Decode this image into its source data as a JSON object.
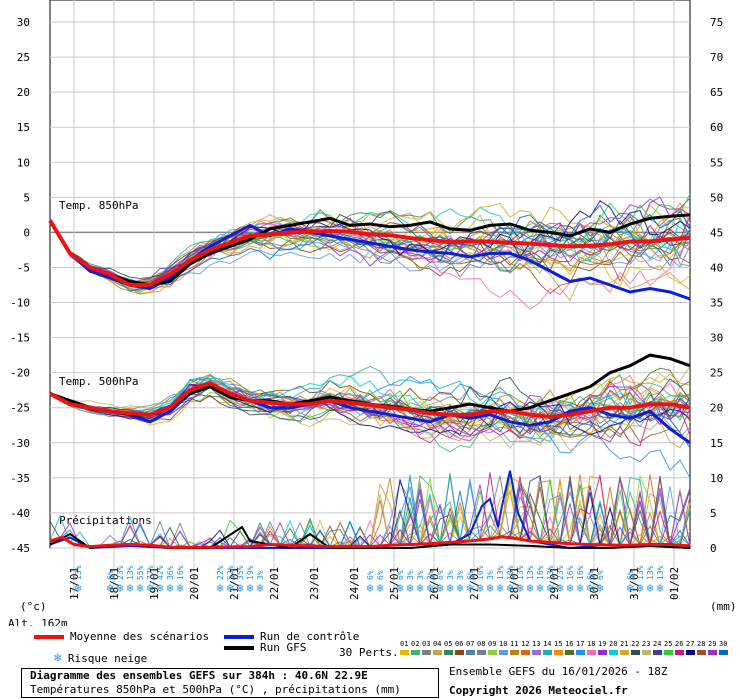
{
  "chart_data": {
    "type": "line",
    "left_axis": {
      "unit": "(°c)",
      "min": -45,
      "max": 30,
      "ticks": [
        30,
        25,
        20,
        15,
        10,
        5,
        0,
        -5,
        -10,
        -15,
        -20,
        -25,
        -30,
        -35,
        -40,
        -45
      ]
    },
    "right_axis": {
      "unit": "(mm)",
      "min": 0,
      "max": 75,
      "ticks": [
        75,
        70,
        65,
        60,
        55,
        50,
        45,
        40,
        35,
        30,
        25,
        20,
        15,
        10,
        5,
        0
      ]
    },
    "x_dates": [
      "17/01",
      "18/01",
      "19/01",
      "20/01",
      "21/01",
      "22/01",
      "23/01",
      "24/01",
      "25/01",
      "26/01",
      "27/01",
      "28/01",
      "29/01",
      "30/01",
      "31/01",
      "01/02"
    ],
    "x_range_days": [
      0,
      16
    ],
    "altitude": "Alt. 162m",
    "panel_labels": {
      "t850": "Temp. 850hPa",
      "t500": "Temp. 500hPa",
      "precip": "Précipitations"
    },
    "mean_t850": [
      [
        0,
        1.7
      ],
      [
        0.5,
        -3
      ],
      [
        1,
        -5
      ],
      [
        1.5,
        -6
      ],
      [
        2,
        -7.5
      ],
      [
        2.5,
        -7.5
      ],
      [
        3,
        -6
      ],
      [
        3.5,
        -4
      ],
      [
        4,
        -2.5
      ],
      [
        4.5,
        -1.5
      ],
      [
        5,
        -0.5
      ],
      [
        5.5,
        -0.3
      ],
      [
        6,
        0
      ],
      [
        6.5,
        0.1
      ],
      [
        7,
        0.2
      ],
      [
        7.5,
        0.1
      ],
      [
        8,
        -0.3
      ],
      [
        8.5,
        -0.4
      ],
      [
        9,
        -0.8
      ],
      [
        9.5,
        -1.1
      ],
      [
        10,
        -1.4
      ],
      [
        10.5,
        -1.3
      ],
      [
        11,
        -1.3
      ],
      [
        11.5,
        -1.5
      ],
      [
        12,
        -1.6
      ],
      [
        12.5,
        -1.8
      ],
      [
        13,
        -2
      ],
      [
        13.5,
        -1.9
      ],
      [
        14,
        -1.7
      ],
      [
        14.5,
        -1.3
      ],
      [
        15,
        -1.3
      ],
      [
        15.5,
        -1
      ],
      [
        16,
        -0.8
      ]
    ],
    "control_t850": [
      [
        0,
        1.7
      ],
      [
        0.5,
        -3
      ],
      [
        1,
        -5.5
      ],
      [
        1.5,
        -6.5
      ],
      [
        2,
        -7.5
      ],
      [
        2.5,
        -8
      ],
      [
        3,
        -6.5
      ],
      [
        3.5,
        -4
      ],
      [
        4,
        -2
      ],
      [
        4.5,
        -0.5
      ],
      [
        5,
        1
      ],
      [
        5.5,
        -0.5
      ],
      [
        6,
        0.5
      ],
      [
        6.5,
        0
      ],
      [
        7,
        -0.5
      ],
      [
        7.5,
        -1
      ],
      [
        8,
        -1.5
      ],
      [
        8.5,
        -2
      ],
      [
        9,
        -2.5
      ],
      [
        9.5,
        -2.8
      ],
      [
        10,
        -3
      ],
      [
        10.5,
        -3.5
      ],
      [
        11,
        -3
      ],
      [
        11.5,
        -3
      ],
      [
        12,
        -4
      ],
      [
        12.5,
        -5.5
      ],
      [
        13,
        -7
      ],
      [
        13.5,
        -6.5
      ],
      [
        14,
        -7.5
      ],
      [
        14.5,
        -8.5
      ],
      [
        15,
        -8
      ],
      [
        15.5,
        -8.5
      ],
      [
        16,
        -9.5
      ]
    ],
    "gfs_t850": [
      [
        0,
        1.7
      ],
      [
        0.5,
        -3
      ],
      [
        1,
        -5
      ],
      [
        1.5,
        -6
      ],
      [
        2,
        -7
      ],
      [
        2.5,
        -7.5
      ],
      [
        3,
        -7
      ],
      [
        3.5,
        -4.5
      ],
      [
        4,
        -3
      ],
      [
        4.5,
        -2
      ],
      [
        5,
        -1
      ],
      [
        5.5,
        0.5
      ],
      [
        6,
        1
      ],
      [
        6.5,
        1.5
      ],
      [
        7,
        2
      ],
      [
        7.5,
        1
      ],
      [
        8,
        1.2
      ],
      [
        8.5,
        0.8
      ],
      [
        9,
        1
      ],
      [
        9.5,
        1.5
      ],
      [
        10,
        0.5
      ],
      [
        10.5,
        0.3
      ],
      [
        11,
        1
      ],
      [
        11.5,
        1.2
      ],
      [
        12,
        0.3
      ],
      [
        12.5,
        0
      ],
      [
        13,
        -0.5
      ],
      [
        13.5,
        0.5
      ],
      [
        14,
        0
      ],
      [
        14.5,
        1.2
      ],
      [
        15,
        2
      ],
      [
        15.5,
        2.3
      ],
      [
        16,
        2.5
      ]
    ],
    "mean_t500": [
      [
        0,
        -23
      ],
      [
        0.5,
        -24.5
      ],
      [
        1,
        -25
      ],
      [
        1.5,
        -25.5
      ],
      [
        2,
        -25.8
      ],
      [
        2.5,
        -26
      ],
      [
        3,
        -25
      ],
      [
        3.5,
        -22.5
      ],
      [
        4,
        -21.5
      ],
      [
        4.5,
        -23
      ],
      [
        5,
        -24
      ],
      [
        5.5,
        -24.3
      ],
      [
        6,
        -24.5
      ],
      [
        6.5,
        -24.5
      ],
      [
        7,
        -24
      ],
      [
        7.5,
        -24.3
      ],
      [
        8,
        -24.6
      ],
      [
        8.5,
        -25
      ],
      [
        9,
        -25.3
      ],
      [
        9.5,
        -25.8
      ],
      [
        10,
        -26
      ],
      [
        10.5,
        -26
      ],
      [
        11,
        -25.5
      ],
      [
        11.5,
        -25.5
      ],
      [
        12,
        -26
      ],
      [
        12.5,
        -26.3
      ],
      [
        13,
        -26
      ],
      [
        13.5,
        -25.5
      ],
      [
        14,
        -25
      ],
      [
        14.5,
        -25
      ],
      [
        15,
        -24.5
      ],
      [
        15.5,
        -24.5
      ],
      [
        16,
        -25
      ]
    ],
    "control_t500": [
      [
        0,
        -23
      ],
      [
        0.5,
        -24
      ],
      [
        1,
        -25
      ],
      [
        1.5,
        -25.5
      ],
      [
        2,
        -26
      ],
      [
        2.5,
        -27
      ],
      [
        3,
        -25.5
      ],
      [
        3.5,
        -23
      ],
      [
        4,
        -22
      ],
      [
        4.5,
        -23
      ],
      [
        5,
        -24
      ],
      [
        5.5,
        -25
      ],
      [
        6,
        -25
      ],
      [
        6.5,
        -24.5
      ],
      [
        7,
        -24
      ],
      [
        7.5,
        -25
      ],
      [
        8,
        -25.5
      ],
      [
        8.5,
        -26
      ],
      [
        9,
        -26.5
      ],
      [
        9.5,
        -27
      ],
      [
        10,
        -26
      ],
      [
        10.5,
        -26.5
      ],
      [
        11,
        -26
      ],
      [
        11.5,
        -27
      ],
      [
        12,
        -27.5
      ],
      [
        12.5,
        -27
      ],
      [
        13,
        -25.5
      ],
      [
        13.5,
        -25
      ],
      [
        14,
        -26
      ],
      [
        14.5,
        -26.5
      ],
      [
        15,
        -25.5
      ],
      [
        15.5,
        -28
      ],
      [
        16,
        -30
      ]
    ],
    "gfs_t500": [
      [
        0,
        -23
      ],
      [
        0.5,
        -24
      ],
      [
        1,
        -25
      ],
      [
        1.5,
        -25.5
      ],
      [
        2,
        -26
      ],
      [
        2.5,
        -26
      ],
      [
        3,
        -25
      ],
      [
        3.5,
        -23
      ],
      [
        4,
        -22
      ],
      [
        4.5,
        -23.5
      ],
      [
        5,
        -24
      ],
      [
        5.5,
        -24
      ],
      [
        6,
        -24.5
      ],
      [
        6.5,
        -24
      ],
      [
        7,
        -23.5
      ],
      [
        7.5,
        -24
      ],
      [
        8,
        -24.5
      ],
      [
        8.5,
        -24.8
      ],
      [
        9,
        -25.2
      ],
      [
        9.5,
        -25.5
      ],
      [
        10,
        -25
      ],
      [
        10.5,
        -24.5
      ],
      [
        11,
        -25
      ],
      [
        11.5,
        -25.5
      ],
      [
        12,
        -25
      ],
      [
        12.5,
        -24
      ],
      [
        13,
        -23
      ],
      [
        13.5,
        -22
      ],
      [
        14,
        -20
      ],
      [
        14.5,
        -19
      ],
      [
        15,
        -17.5
      ],
      [
        15.5,
        -18
      ],
      [
        16,
        -19
      ]
    ],
    "mean_precip": [
      [
        0,
        1
      ],
      [
        0.3,
        1.5
      ],
      [
        0.6,
        0.5
      ],
      [
        1,
        0.2
      ],
      [
        1.5,
        0.4
      ],
      [
        2,
        0.5
      ],
      [
        2.5,
        0.4
      ],
      [
        3,
        0.1
      ],
      [
        4,
        0.1
      ],
      [
        5,
        0.2
      ],
      [
        5.5,
        0.5
      ],
      [
        6,
        0.4
      ],
      [
        7,
        0.2
      ],
      [
        8,
        0.2
      ],
      [
        8.5,
        0.4
      ],
      [
        9,
        0.5
      ],
      [
        9.5,
        0.6
      ],
      [
        10,
        0.8
      ],
      [
        10.5,
        1
      ],
      [
        11,
        1.3
      ],
      [
        11.3,
        1.6
      ],
      [
        11.6,
        1.4
      ],
      [
        12,
        1
      ],
      [
        12.5,
        0.8
      ],
      [
        13,
        0.6
      ],
      [
        13.5,
        0.5
      ],
      [
        14,
        0.4
      ],
      [
        14.5,
        0.4
      ],
      [
        15,
        0.5
      ],
      [
        15.5,
        0.5
      ],
      [
        16,
        0.3
      ]
    ],
    "control_precip": [
      [
        0,
        0.5
      ],
      [
        0.5,
        1.5
      ],
      [
        1,
        0
      ],
      [
        2,
        0.3
      ],
      [
        3,
        0
      ],
      [
        5,
        0
      ],
      [
        6,
        0
      ],
      [
        8,
        0
      ],
      [
        9,
        0
      ],
      [
        10,
        0.5
      ],
      [
        10.5,
        2
      ],
      [
        10.8,
        6
      ],
      [
        11,
        7
      ],
      [
        11.2,
        3
      ],
      [
        11.3,
        6
      ],
      [
        11.5,
        11
      ],
      [
        11.7,
        5
      ],
      [
        12,
        1
      ],
      [
        13,
        0
      ],
      [
        14,
        0.5
      ],
      [
        15,
        0.3
      ],
      [
        16,
        0
      ]
    ],
    "gfs_precip": [
      [
        0,
        0.5
      ],
      [
        0.5,
        2
      ],
      [
        1,
        0
      ],
      [
        2,
        0.5
      ],
      [
        3,
        0
      ],
      [
        4,
        0
      ],
      [
        4.8,
        3
      ],
      [
        5,
        1
      ],
      [
        5.5,
        0.5
      ],
      [
        6,
        0
      ],
      [
        6.5,
        2
      ],
      [
        7,
        0
      ],
      [
        8,
        0
      ],
      [
        9,
        0
      ],
      [
        10,
        0.5
      ],
      [
        11,
        0.5
      ],
      [
        12,
        0.3
      ],
      [
        13,
        0
      ],
      [
        14,
        0
      ],
      [
        15,
        0.3
      ],
      [
        16,
        0
      ]
    ],
    "snow_risk": [
      {
        "day": 0.7,
        "pct": "13%"
      },
      {
        "day": 1.5,
        "pct": "6%"
      },
      {
        "day": 1.75,
        "pct": "23%"
      },
      {
        "day": 2,
        "pct": "13%"
      },
      {
        "day": 2.25,
        "pct": "55%"
      },
      {
        "day": 2.5,
        "pct": "77%"
      },
      {
        "day": 2.75,
        "pct": "42%"
      },
      {
        "day": 3,
        "pct": "36%"
      },
      {
        "day": 3.25,
        "pct": "16%"
      },
      {
        "day": 4.25,
        "pct": "22%"
      },
      {
        "day": 4.5,
        "pct": "52%"
      },
      {
        "day": 4.75,
        "pct": "35%"
      },
      {
        "day": 5,
        "pct": "19%"
      },
      {
        "day": 5.25,
        "pct": "3%"
      },
      {
        "day": 8,
        "pct": "6%"
      },
      {
        "day": 8.25,
        "pct": "6%"
      },
      {
        "day": 8.75,
        "pct": "6%"
      },
      {
        "day": 9,
        "pct": "3%"
      },
      {
        "day": 9.25,
        "pct": "3%"
      },
      {
        "day": 9.5,
        "pct": "3%"
      },
      {
        "day": 9.75,
        "pct": "6%"
      },
      {
        "day": 10,
        "pct": "3%"
      },
      {
        "day": 10.25,
        "pct": "3%"
      },
      {
        "day": 10.5,
        "pct": "6%"
      },
      {
        "day": 10.75,
        "pct": "10%"
      },
      {
        "day": 11,
        "pct": "3%"
      },
      {
        "day": 11.25,
        "pct": "13%"
      },
      {
        "day": 11.5,
        "pct": "10%"
      },
      {
        "day": 11.75,
        "pct": "13%"
      },
      {
        "day": 12,
        "pct": "13%"
      },
      {
        "day": 12.25,
        "pct": "16%"
      },
      {
        "day": 12.5,
        "pct": "13%"
      },
      {
        "day": 12.75,
        "pct": "23%"
      },
      {
        "day": 13,
        "pct": "16%"
      },
      {
        "day": 13.25,
        "pct": "16%"
      },
      {
        "day": 13.5,
        "pct": "6%"
      },
      {
        "day": 13.75,
        "pct": "6%"
      },
      {
        "day": 14.5,
        "pct": "6%"
      },
      {
        "day": 14.75,
        "pct": "13%"
      },
      {
        "day": 15,
        "pct": "13%"
      },
      {
        "day": 15.25,
        "pct": "13%"
      }
    ]
  },
  "legend": {
    "mean": "Moyenne des scénarios",
    "control": "Run de contrôle",
    "gfs": "Run GFS",
    "snow": "Risque neige",
    "perts_label": "30 Perts.",
    "perts": [
      "01",
      "02",
      "03",
      "04",
      "05",
      "06",
      "07",
      "08",
      "09",
      "10",
      "11",
      "12",
      "13",
      "14",
      "15",
      "16",
      "17",
      "18",
      "19",
      "20",
      "21",
      "22",
      "23",
      "24",
      "25",
      "26",
      "27",
      "28",
      "29",
      "30"
    ],
    "pert_colors": [
      "#e6b800",
      "#3cb371",
      "#808080",
      "#d2a04a",
      "#2e8b57",
      "#8b4513",
      "#4682b4",
      "#708090",
      "#9acd32",
      "#6495ed",
      "#b8860b",
      "#d2691e",
      "#9370db",
      "#20b2aa",
      "#ff8c00",
      "#556b2f",
      "#1e90ff",
      "#ff69b4",
      "#8a2be2",
      "#00ced1",
      "#daa520",
      "#2f4f4f",
      "#bdb76b",
      "#483d8b",
      "#32cd32",
      "#c71585",
      "#00008b",
      "#a0522d",
      "#9932cc",
      "#0066cc"
    ],
    "colors": {
      "mean": "#ee1111",
      "control": "#0b1fd6",
      "gfs": "#000000",
      "snow": "#3399dd"
    }
  },
  "title": {
    "line1": "Diagramme des ensembles GEFS sur 384h : 40.6N 22.9E",
    "line2": "Températures 850hPa et 500hPa (°C) , précipitations (mm)"
  },
  "ensemble_info": "Ensemble GEFS du 16/01/2026 - 18Z",
  "copyright": "Copyright 2026 Meteociel.fr"
}
